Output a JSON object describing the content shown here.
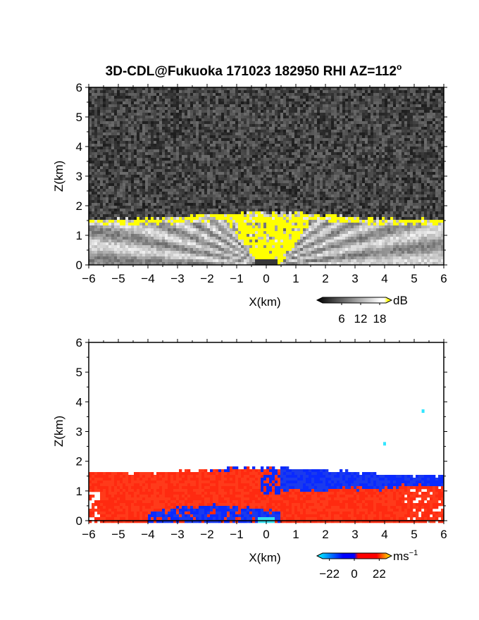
{
  "figure": {
    "title": "3D-CDL@Fukuoka 171023 182950 RHI AZ=112",
    "title_superscript": "o"
  },
  "chart_data": [
    {
      "type": "heatmap",
      "panel": "intensity",
      "xlabel": "X(km)",
      "ylabel": "Z(km)",
      "xlim": [
        -6,
        6
      ],
      "ylim": [
        0,
        6
      ],
      "x_ticks": [
        "-6",
        "-5",
        "-4",
        "-3",
        "-2",
        "-1",
        "0",
        "1",
        "2",
        "3",
        "4",
        "5",
        "6"
      ],
      "y_ticks": [
        "0",
        "1",
        "2",
        "3",
        "4",
        "5",
        "6"
      ],
      "colorbar": {
        "unit": "dB",
        "tick_labels": [
          "6",
          "12",
          "18"
        ],
        "tick_values": [
          6,
          12,
          18
        ],
        "colors": [
          "#000000",
          "#ffffff",
          "#ffff00"
        ]
      },
      "features": [
        {
          "name": "noise",
          "z_range": [
            1.7,
            6
          ],
          "value_db": 2
        },
        {
          "name": "cloud_top_layer",
          "z_range": [
            1.4,
            1.75
          ],
          "value_db": 20
        },
        {
          "name": "central_plume",
          "x_range": [
            -1.3,
            1.6
          ],
          "z_range": [
            0,
            1.8
          ],
          "value_db": 20
        },
        {
          "name": "boundary_layer",
          "z_range": [
            0,
            1.5
          ],
          "value_db": 11
        }
      ]
    },
    {
      "type": "heatmap",
      "panel": "velocity",
      "xlabel": "X(km)",
      "ylabel": "Z(km)",
      "xlim": [
        -6,
        6
      ],
      "ylim": [
        0,
        6
      ],
      "x_ticks": [
        "-6",
        "-5",
        "-4",
        "-3",
        "-2",
        "-1",
        "0",
        "1",
        "2",
        "3",
        "4",
        "5",
        "6"
      ],
      "y_ticks": [
        "0",
        "1",
        "2",
        "3",
        "4",
        "5",
        "6"
      ],
      "colorbar": {
        "unit": "ms",
        "unit_superscript": "-1",
        "tick_labels": [
          "-22",
          "0",
          "22"
        ],
        "tick_values": [
          -22,
          0,
          22
        ],
        "colors": [
          "#00ffff",
          "#0000ff",
          "#ff0000",
          "#ffff00"
        ]
      },
      "features": [
        {
          "name": "red_layer_west",
          "x_range": [
            -6,
            0.5
          ],
          "z_range": [
            0,
            1.85
          ],
          "value_ms": 6
        },
        {
          "name": "red_layer_east",
          "x_range": [
            0.5,
            6
          ],
          "z_range": [
            0,
            1.1
          ],
          "value_ms": 6
        },
        {
          "name": "blue_layer_east_top",
          "x_range": [
            0.5,
            6
          ],
          "z_range": [
            1.05,
            1.75
          ],
          "value_ms": -8
        },
        {
          "name": "blue_layer_west_low",
          "x_range": [
            -4,
            0
          ],
          "z_range": [
            0,
            0.55
          ],
          "value_ms": -8
        }
      ],
      "outliers": [
        {
          "x": 5.3,
          "z": 3.7,
          "value_ms": -20
        },
        {
          "x": 4.0,
          "z": 2.6,
          "value_ms": -20
        }
      ]
    }
  ]
}
